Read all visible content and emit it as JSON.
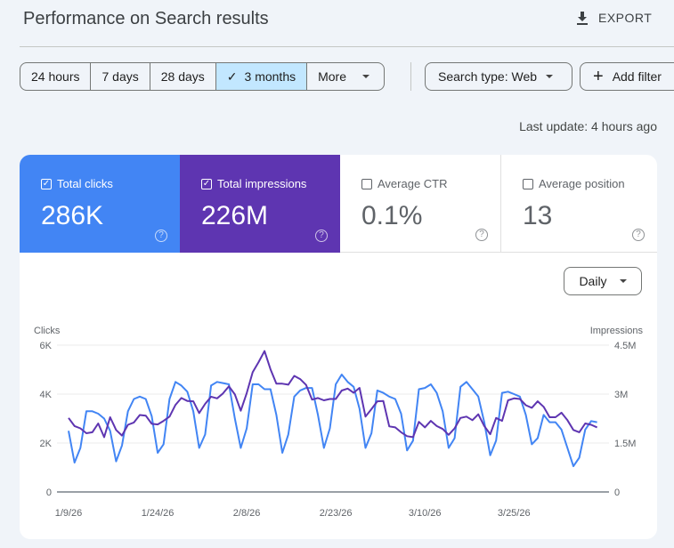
{
  "header": {
    "title": "Performance on Search results",
    "export_label": "EXPORT"
  },
  "date_range": {
    "options": [
      "24 hours",
      "7 days",
      "28 days",
      "3 months",
      "More"
    ],
    "selected": "3 months"
  },
  "filters": {
    "search_type": "Search type: Web",
    "add_filter": "Add filter"
  },
  "last_update": "Last update: 4 hours ago",
  "metrics": [
    {
      "label": "Total clicks",
      "value": "286K",
      "checked": true,
      "color": "#4285f4"
    },
    {
      "label": "Total impressions",
      "value": "226M",
      "checked": true,
      "color": "#5e35b1"
    },
    {
      "label": "Average CTR",
      "value": "0.1%",
      "checked": false
    },
    {
      "label": "Average position",
      "value": "13",
      "checked": false
    }
  ],
  "granularity": "Daily",
  "chart_data": {
    "type": "line",
    "ylabel_left": "Clicks",
    "ylabel_right": "Impressions",
    "y_left_ticks": [
      "0",
      "2K",
      "4K",
      "6K"
    ],
    "y_left_range": [
      0,
      6000
    ],
    "y_right_ticks": [
      "0",
      "1.5M",
      "3M",
      "4.5M"
    ],
    "y_right_range": [
      0,
      4500000
    ],
    "x_start": "2026-01-09",
    "x_end": "2026-04-08",
    "x_ticks": [
      "1/9/26",
      "1/24/26",
      "2/8/26",
      "2/23/26",
      "3/10/26",
      "3/25/26"
    ],
    "grid": true,
    "series": [
      {
        "name": "Total clicks",
        "axis": "left",
        "color": "#4285f4",
        "values_k": [
          2.5,
          1.2,
          1.8,
          3.3,
          3.3,
          3.2,
          3.0,
          2.5,
          1.25,
          1.9,
          3.3,
          3.8,
          3.9,
          3.8,
          3.1,
          1.6,
          1.95,
          3.8,
          4.5,
          4.35,
          4.1,
          3.3,
          1.8,
          2.35,
          4.35,
          4.5,
          4.45,
          4.4,
          3.0,
          1.8,
          2.6,
          4.4,
          4.4,
          4.2,
          4.2,
          3.15,
          1.6,
          2.35,
          3.9,
          4.15,
          4.25,
          4.25,
          3.15,
          1.8,
          2.6,
          4.4,
          4.8,
          4.5,
          4.3,
          3.4,
          1.8,
          2.4,
          4.15,
          4.05,
          3.9,
          3.8,
          3.2,
          1.7,
          2.1,
          4.2,
          4.25,
          4.4,
          4.05,
          3.3,
          1.8,
          2.2,
          4.3,
          4.5,
          4.2,
          3.9,
          2.85,
          1.5,
          2.1,
          4.05,
          4.1,
          4.0,
          3.9,
          3.15,
          1.95,
          2.2,
          3.15,
          2.85,
          2.85,
          2.55,
          1.8,
          1.05,
          1.4,
          2.55,
          2.9,
          2.85
        ]
      },
      {
        "name": "Total impressions",
        "axis": "right",
        "color": "#5e35b1",
        "values_m": [
          2.27,
          2.02,
          1.95,
          1.8,
          1.83,
          2.1,
          1.68,
          2.29,
          1.9,
          1.73,
          2.06,
          2.13,
          2.36,
          2.34,
          2.09,
          2.07,
          2.18,
          2.31,
          2.67,
          2.88,
          2.79,
          2.78,
          2.42,
          2.7,
          2.92,
          2.87,
          3.02,
          3.24,
          2.99,
          2.49,
          3.03,
          3.67,
          3.98,
          4.32,
          3.76,
          3.32,
          3.32,
          3.29,
          3.56,
          3.46,
          3.28,
          2.83,
          2.88,
          2.81,
          2.85,
          2.85,
          3.11,
          3.17,
          3.04,
          3.19,
          2.31,
          2.54,
          2.78,
          2.79,
          2.01,
          1.98,
          1.83,
          1.71,
          1.68,
          2.15,
          1.98,
          2.18,
          2.02,
          1.93,
          1.75,
          1.95,
          2.27,
          2.31,
          2.2,
          2.38,
          2.02,
          1.77,
          2.27,
          2.18,
          2.81,
          2.87,
          2.85,
          2.66,
          2.58,
          2.78,
          2.61,
          2.29,
          2.29,
          2.43,
          2.2,
          1.9,
          1.83,
          2.1,
          2.06,
          1.98
        ]
      }
    ]
  }
}
